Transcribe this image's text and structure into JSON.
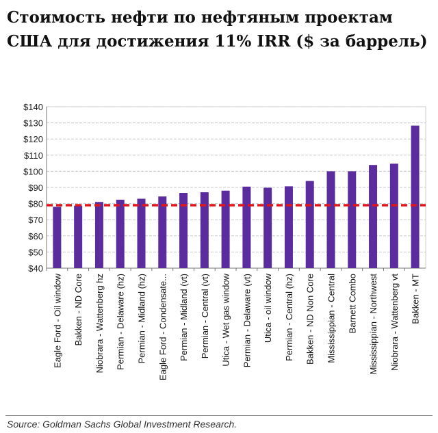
{
  "title": "Стоимость нефти по нефтяным проектам США для достижения 11% IRR ($ за баррель)",
  "source": "Source: Goldman Sachs Global Investment Research.",
  "chart_data": {
    "type": "bar",
    "title": "Стоимость нефти по нефтяным проектам США для достижения 11% IRR ($ за баррель)",
    "xlabel": "",
    "ylabel": "",
    "ylim": [
      40,
      140
    ],
    "yticks": [
      40,
      50,
      60,
      70,
      80,
      90,
      100,
      110,
      120,
      130,
      140
    ],
    "ytick_labels": [
      "$40",
      "$50",
      "$60",
      "$70",
      "$80",
      "$90",
      "$100",
      "$110",
      "$120",
      "$130",
      "$140"
    ],
    "grid": true,
    "categories": [
      "Eagle Ford - Oil window",
      "Bakken - ND Core",
      "Niobrara - Wattenberg hz",
      "Permian - Delaware (hz)",
      "Permian - Midland (hz)",
      "Eagle Ford - Condensate...",
      "Permian - Midland (vt)",
      "Permian - Central (vt)",
      "Utica - Wet gas window",
      "Permian - Delaware (vt)",
      "Utica - oil window",
      "Permian - Central (hz)",
      "Bakken - ND Non Core",
      "Mississippian - Central",
      "Barnett Combo",
      "Mississippian - Northwest",
      "Niobrara - Wattenberg vt",
      "Bakken - MT"
    ],
    "values": [
      78,
      78.7,
      81,
      82.4,
      83,
      84.4,
      86.6,
      87,
      88,
      90.5,
      89.8,
      90.7,
      94,
      100,
      100,
      103.9,
      104.7,
      128.3
    ],
    "reference_line": {
      "value": 79,
      "style": "dashed",
      "color": "#e0161b"
    },
    "bar_color": "#5b2c9e"
  }
}
